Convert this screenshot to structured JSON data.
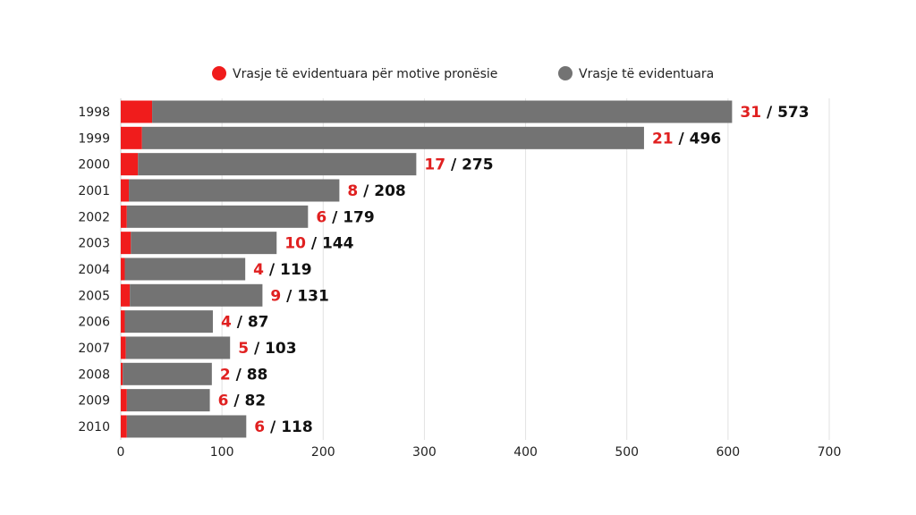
{
  "chart_data": {
    "type": "bar",
    "orientation": "horizontal",
    "stacked": true,
    "title": "",
    "xlabel": "",
    "ylabel": "",
    "xlim": [
      0,
      700
    ],
    "xticks": [
      0,
      100,
      200,
      300,
      400,
      500,
      600,
      700
    ],
    "grid": true,
    "legend_position": "top-center",
    "categories": [
      "1998",
      "1999",
      "2000",
      "2001",
      "2002",
      "2003",
      "2004",
      "2005",
      "2006",
      "2007",
      "2008",
      "2009",
      "2010"
    ],
    "series": [
      {
        "name": "Vrasje të evidentuara për motive pronësie",
        "color": "#f01c1c",
        "values": [
          31,
          21,
          17,
          8,
          6,
          10,
          4,
          9,
          4,
          5,
          2,
          6,
          6
        ]
      },
      {
        "name": "Vrasje të evidentuara",
        "color": "#737373",
        "values": [
          573,
          496,
          275,
          208,
          179,
          144,
          119,
          131,
          87,
          103,
          88,
          82,
          118
        ]
      }
    ],
    "label_separator": " / ",
    "label_colors": {
      "motive": "#e02020",
      "total": "#111111"
    }
  }
}
